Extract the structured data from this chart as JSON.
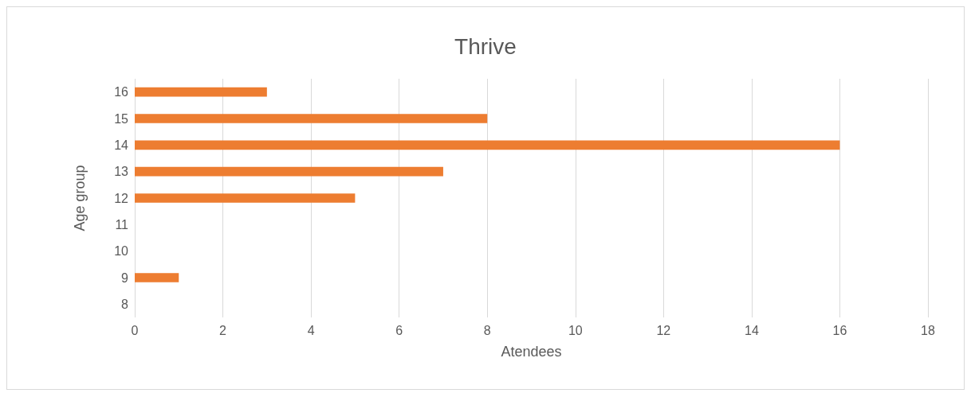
{
  "chart_data": {
    "type": "bar",
    "orientation": "horizontal",
    "title": "Thrive",
    "xlabel": "Atendees",
    "ylabel": "Age group",
    "categories": [
      "16",
      "15",
      "14",
      "13",
      "12",
      "11",
      "10",
      "9",
      "8"
    ],
    "values": [
      3,
      8,
      16,
      7,
      5,
      0,
      0,
      1,
      0
    ],
    "color": "#ed7d31",
    "xlim": [
      0,
      18
    ],
    "xticks": [
      0,
      2,
      4,
      6,
      8,
      10,
      12,
      14,
      16,
      18
    ],
    "grid": "x"
  }
}
